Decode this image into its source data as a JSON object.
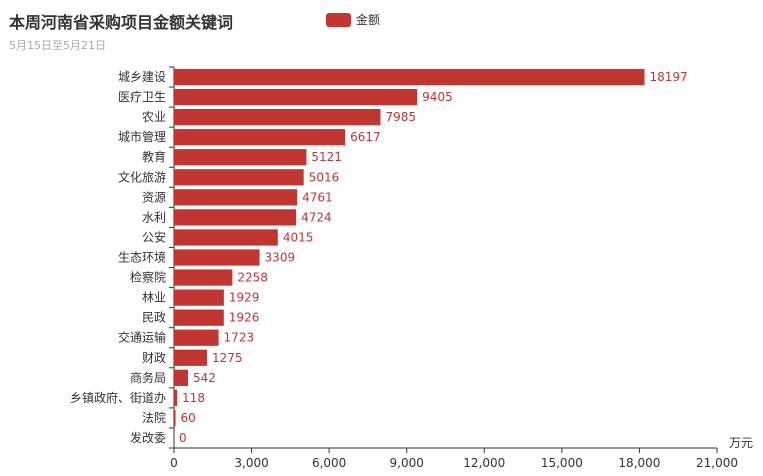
{
  "title": "本周河南省采购项目金额关键词",
  "subtitle": "5月15日至5月21日",
  "colors": {
    "bar": "#c23531",
    "axis": "#333333",
    "text": "#333333"
  },
  "chart_data": {
    "type": "bar",
    "orientation": "horizontal",
    "categories": [
      "城乡建设",
      "医疗卫生",
      "农业",
      "城市管理",
      "教育",
      "文化旅游",
      "资源",
      "水利",
      "公安",
      "生态环境",
      "检察院",
      "林业",
      "民政",
      "交通运输",
      "财政",
      "商务局",
      "乡镇政府、街道办",
      "法院",
      "发改委"
    ],
    "series": [
      {
        "name": "金额",
        "values": [
          18197,
          9405,
          7985,
          6617,
          5121,
          5016,
          4761,
          4724,
          4015,
          3309,
          2258,
          1929,
          1926,
          1723,
          1275,
          542,
          118,
          60,
          0
        ]
      }
    ],
    "x_ticks": [
      "0",
      "3,000",
      "6,000",
      "9,000",
      "12,000",
      "15,000",
      "18,000",
      "21,000"
    ],
    "xlim": [
      0,
      21000
    ],
    "xunit": "万元",
    "legend_position": "top",
    "grid": false
  }
}
